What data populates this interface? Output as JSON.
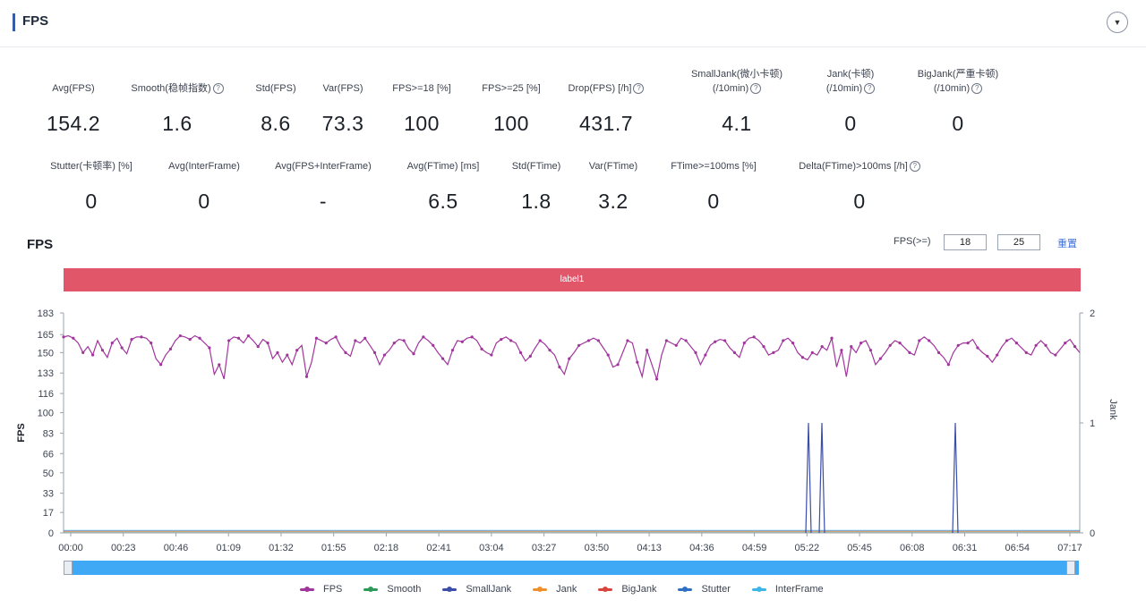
{
  "header": {
    "title": "FPS"
  },
  "stats_row1": [
    {
      "label": "Avg(FPS)",
      "value": "154.2",
      "help": false
    },
    {
      "label": "Smooth(稳帧指数)",
      "value": "1.6",
      "help": true
    },
    {
      "label": "Std(FPS)",
      "value": "8.6",
      "help": false
    },
    {
      "label": "Var(FPS)",
      "value": "73.3",
      "help": false
    },
    {
      "label": "FPS>=18 [%]",
      "value": "100",
      "help": false
    },
    {
      "label": "FPS>=25 [%]",
      "value": "100",
      "help": false
    },
    {
      "label": "Drop(FPS) [/h]",
      "value": "431.7",
      "help": true
    },
    {
      "label": "SmallJank(微小卡顿)",
      "label2": "(/10min)",
      "value": "4.1",
      "help": true
    },
    {
      "label": "Jank(卡顿)",
      "label2": "(/10min)",
      "value": "0",
      "help": true
    },
    {
      "label": "BigJank(严重卡顿)",
      "label2": "(/10min)",
      "value": "0",
      "help": true
    }
  ],
  "stats_row2": [
    {
      "label": "Stutter(卡顿率) [%]",
      "value": "0",
      "help": false
    },
    {
      "label": "Avg(InterFrame)",
      "value": "0",
      "help": false
    },
    {
      "label": "Avg(FPS+InterFrame)",
      "value": "-",
      "help": false
    },
    {
      "label": "Avg(FTime) [ms]",
      "value": "6.5",
      "help": false
    },
    {
      "label": "Std(FTime)",
      "value": "1.8",
      "help": false
    },
    {
      "label": "Var(FTime)",
      "value": "3.2",
      "help": false
    },
    {
      "label": "FTime>=100ms [%]",
      "value": "0",
      "help": false
    },
    {
      "label": "Delta(FTime)>100ms [/h]",
      "value": "0",
      "help": true
    }
  ],
  "chart_controls": {
    "title": "FPS",
    "threshold_label": "FPS(>=)",
    "threshold1": "18",
    "threshold2": "25",
    "reset_label": "重置",
    "label_bar": "label1"
  },
  "legend": [
    {
      "name": "FPS",
      "color": "#a0359c"
    },
    {
      "name": "Smooth",
      "color": "#2e9a5a"
    },
    {
      "name": "SmallJank",
      "color": "#3b4ea8"
    },
    {
      "name": "Jank",
      "color": "#f0902d"
    },
    {
      "name": "BigJank",
      "color": "#d9443d"
    },
    {
      "name": "Stutter",
      "color": "#2f6fc4"
    },
    {
      "name": "InterFrame",
      "color": "#3bb6e6"
    }
  ],
  "chart_data": {
    "type": "line",
    "ylabel": "FPS",
    "y2label": "Jank",
    "y_ticks": [
      "183",
      "165",
      "150",
      "133",
      "116",
      "100",
      "83",
      "66",
      "50",
      "33",
      "17",
      "0"
    ],
    "y2_ticks": [
      "2",
      "1",
      "0"
    ],
    "x_ticks": [
      "00:00",
      "00:23",
      "00:46",
      "01:09",
      "01:32",
      "01:55",
      "02:18",
      "02:41",
      "03:04",
      "03:27",
      "03:50",
      "04:13",
      "04:36",
      "04:59",
      "05:22",
      "05:45",
      "06:08",
      "06:31",
      "06:54",
      "07:17"
    ],
    "ylim": [
      0,
      183
    ],
    "y2lim": [
      0,
      2
    ],
    "series": [
      {
        "name": "FPS",
        "color": "#a0359c",
        "values": [
          163,
          164,
          162,
          158,
          150,
          155,
          148,
          160,
          152,
          146,
          158,
          162,
          154,
          149,
          161,
          163,
          163,
          162,
          158,
          145,
          140,
          148,
          153,
          160,
          164,
          163,
          161,
          164,
          162,
          158,
          154,
          132,
          140,
          128,
          160,
          163,
          162,
          158,
          164,
          160,
          155,
          161,
          158,
          145,
          150,
          142,
          148,
          140,
          152,
          156,
          130,
          142,
          162,
          160,
          158,
          161,
          163,
          155,
          150,
          147,
          160,
          158,
          162,
          156,
          150,
          140,
          148,
          152,
          158,
          161,
          160,
          153,
          149,
          158,
          163,
          160,
          156,
          150,
          145,
          140,
          152,
          160,
          159,
          162,
          163,
          160,
          153,
          150,
          148,
          158,
          161,
          163,
          160,
          158,
          150,
          143,
          147,
          154,
          160,
          157,
          152,
          148,
          138,
          132,
          145,
          150,
          156,
          158,
          160,
          162,
          160,
          154,
          148,
          138,
          140,
          150,
          160,
          158,
          142,
          130,
          152,
          140,
          128,
          148,
          160,
          158,
          156,
          162,
          160,
          155,
          150,
          140,
          148,
          156,
          159,
          161,
          160,
          154,
          150,
          146,
          158,
          162,
          163,
          160,
          155,
          148,
          150,
          152,
          160,
          162,
          158,
          150,
          146,
          144,
          150,
          148,
          155,
          152,
          162,
          138,
          152,
          130,
          155,
          150,
          158,
          160,
          152,
          140,
          145,
          150,
          156,
          160,
          158,
          154,
          150,
          148,
          160,
          163,
          160,
          156,
          150,
          146,
          140,
          150,
          156,
          158,
          158,
          161,
          154,
          150,
          147,
          142,
          148,
          155,
          160,
          162,
          158,
          154,
          150,
          148,
          156,
          160,
          156,
          150,
          148,
          153,
          158,
          161,
          155,
          150
        ]
      },
      {
        "name": "SmallJank",
        "color": "#3b4ea8",
        "values_note_x": [
          "05:20",
          "05:26",
          "06:29"
        ],
        "values": [
          1,
          1,
          1
        ]
      }
    ]
  },
  "ui": {
    "collapse_icon": "chevron-down-icon",
    "slider": "time-range-slider"
  }
}
